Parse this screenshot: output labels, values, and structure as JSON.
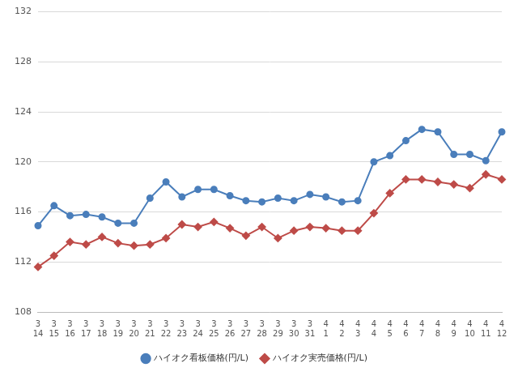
{
  "chart_data": {
    "type": "line",
    "categories": [
      [
        "3",
        "14"
      ],
      [
        "3",
        "15"
      ],
      [
        "3",
        "16"
      ],
      [
        "3",
        "17"
      ],
      [
        "3",
        "18"
      ],
      [
        "3",
        "19"
      ],
      [
        "3",
        "20"
      ],
      [
        "3",
        "21"
      ],
      [
        "3",
        "22"
      ],
      [
        "3",
        "23"
      ],
      [
        "3",
        "24"
      ],
      [
        "3",
        "25"
      ],
      [
        "3",
        "26"
      ],
      [
        "3",
        "27"
      ],
      [
        "3",
        "28"
      ],
      [
        "3",
        "29"
      ],
      [
        "3",
        "30"
      ],
      [
        "3",
        "31"
      ],
      [
        "4",
        "1"
      ],
      [
        "4",
        "2"
      ],
      [
        "4",
        "3"
      ],
      [
        "4",
        "4"
      ],
      [
        "4",
        "5"
      ],
      [
        "4",
        "6"
      ],
      [
        "4",
        "7"
      ],
      [
        "4",
        "8"
      ],
      [
        "4",
        "9"
      ],
      [
        "4",
        "10"
      ],
      [
        "4",
        "11"
      ],
      [
        "4",
        "12"
      ]
    ],
    "series": [
      {
        "name": "ハイオク看板価格(円/L)",
        "color": "#4a7ebb",
        "marker": "circle",
        "values": [
          114.9,
          116.5,
          115.7,
          115.8,
          115.6,
          115.1,
          115.1,
          117.1,
          118.4,
          117.2,
          117.8,
          117.8,
          117.3,
          116.9,
          116.8,
          117.1,
          116.9,
          117.4,
          117.2,
          116.8,
          116.9,
          120.0,
          120.5,
          121.7,
          122.6,
          122.4,
          120.6,
          120.6,
          120.1,
          122.4
        ]
      },
      {
        "name": "ハイオク実売価格(円/L)",
        "color": "#be4b48",
        "marker": "diamond",
        "values": [
          111.6,
          112.5,
          113.6,
          113.4,
          114.0,
          113.5,
          113.3,
          113.4,
          113.9,
          115.0,
          114.8,
          115.2,
          114.7,
          114.1,
          114.8,
          113.9,
          114.5,
          114.8,
          114.7,
          114.5,
          114.5,
          115.9,
          117.5,
          118.6,
          118.6,
          118.4,
          118.2,
          117.9,
          119.0,
          118.6
        ]
      }
    ],
    "ylim": [
      108,
      132
    ],
    "yticks": [
      108,
      112,
      116,
      120,
      124,
      128,
      132
    ],
    "grid": true,
    "legend": "bottom"
  }
}
